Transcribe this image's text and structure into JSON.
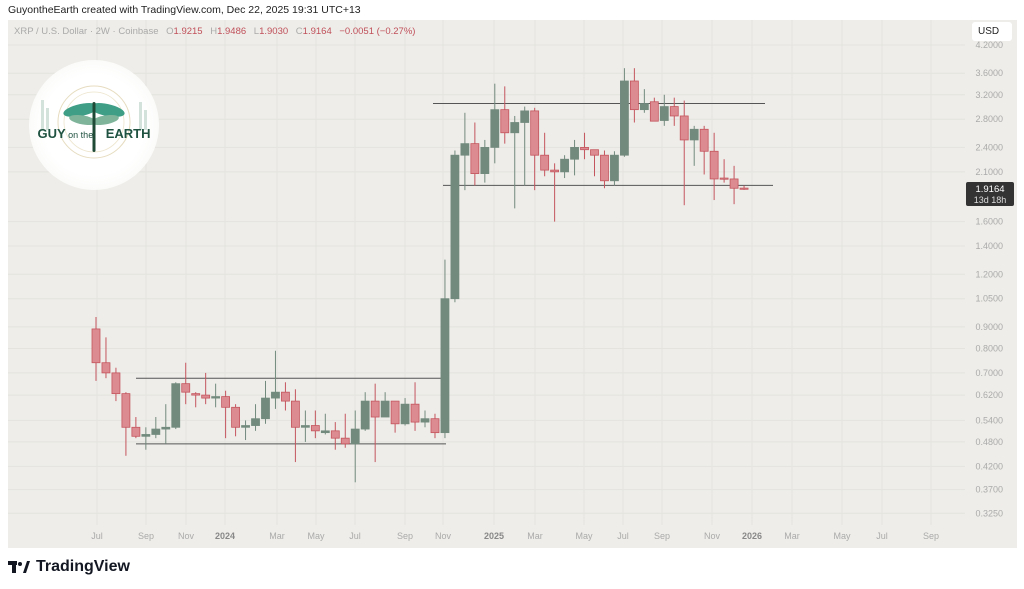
{
  "header": {
    "credit": "GuyontheEarth created with TradingView.com, Dec 22, 2025 19:31 UTC+13",
    "symbol": "XRP / U.S. Dollar · 2W · Coinbase",
    "o_label": "O",
    "o": "1.9215",
    "h_label": "H",
    "h": "1.9486",
    "l_label": "L",
    "l": "1.9030",
    "c_label": "C",
    "c": "1.9164",
    "change": "−0.0051 (−0.27%)"
  },
  "currency_button": "USD",
  "logo_text": "GUY on the EARTH",
  "footer_brand": "TradingView",
  "colors": {
    "up": "#728a7e",
    "down": "#dc8c91",
    "down_border": "#c4555e",
    "background": "#eeede9",
    "level_line": "#555555"
  },
  "chart_data": {
    "type": "candlestick",
    "interval": "2W",
    "y_scale": "log",
    "ylim": [
      0.31,
      4.3
    ],
    "grid": true,
    "y_ticks": [
      "4.2000",
      "3.6000",
      "3.2000",
      "2.8000",
      "2.4000",
      "2.1000",
      "1.6000",
      "1.4000",
      "1.2000",
      "1.0500",
      "0.9000",
      "0.8000",
      "0.7000",
      "0.6200",
      "0.5400",
      "0.4800",
      "0.4200",
      "0.3700",
      "0.3250"
    ],
    "x_ticks": [
      "Jul",
      "Sep",
      "Nov",
      "2024",
      "Mar",
      "May",
      "Jul",
      "Sep",
      "Nov",
      "2025",
      "Mar",
      "May",
      "Jul",
      "Sep",
      "Nov",
      "2026",
      "Mar",
      "May",
      "Jul",
      "Sep"
    ],
    "last_price": {
      "value": "1.9164",
      "countdown": "13d 18h"
    },
    "levels": [
      3.05,
      1.95,
      0.68,
      0.475
    ],
    "candles_ohlc": [
      [
        0.89,
        0.95,
        0.67,
        0.74
      ],
      [
        0.74,
        0.85,
        0.68,
        0.7
      ],
      [
        0.7,
        0.72,
        0.6,
        0.625
      ],
      [
        0.625,
        0.63,
        0.445,
        0.52
      ],
      [
        0.52,
        0.55,
        0.49,
        0.495
      ],
      [
        0.495,
        0.52,
        0.46,
        0.5
      ],
      [
        0.5,
        0.55,
        0.49,
        0.515
      ],
      [
        0.515,
        0.59,
        0.475,
        0.52
      ],
      [
        0.52,
        0.665,
        0.515,
        0.66
      ],
      [
        0.66,
        0.74,
        0.59,
        0.63
      ],
      [
        0.625,
        0.63,
        0.58,
        0.62
      ],
      [
        0.62,
        0.7,
        0.59,
        0.61
      ],
      [
        0.61,
        0.66,
        0.58,
        0.615
      ],
      [
        0.615,
        0.635,
        0.49,
        0.58
      ],
      [
        0.58,
        0.59,
        0.495,
        0.52
      ],
      [
        0.52,
        0.54,
        0.485,
        0.525
      ],
      [
        0.525,
        0.59,
        0.51,
        0.545
      ],
      [
        0.545,
        0.67,
        0.53,
        0.61
      ],
      [
        0.61,
        0.79,
        0.575,
        0.63
      ],
      [
        0.63,
        0.665,
        0.57,
        0.6
      ],
      [
        0.6,
        0.64,
        0.43,
        0.52
      ],
      [
        0.52,
        0.57,
        0.48,
        0.525
      ],
      [
        0.525,
        0.57,
        0.49,
        0.51
      ],
      [
        0.505,
        0.56,
        0.5,
        0.51
      ],
      [
        0.51,
        0.535,
        0.46,
        0.49
      ],
      [
        0.49,
        0.56,
        0.465,
        0.475
      ],
      [
        0.475,
        0.57,
        0.385,
        0.515
      ],
      [
        0.515,
        0.63,
        0.51,
        0.6
      ],
      [
        0.6,
        0.66,
        0.43,
        0.55
      ],
      [
        0.55,
        0.63,
        0.55,
        0.6
      ],
      [
        0.6,
        0.6,
        0.505,
        0.53
      ],
      [
        0.53,
        0.61,
        0.525,
        0.59
      ],
      [
        0.59,
        0.665,
        0.51,
        0.535
      ],
      [
        0.535,
        0.57,
        0.52,
        0.545
      ],
      [
        0.545,
        0.56,
        0.49,
        0.505
      ],
      [
        0.505,
        1.3,
        0.49,
        1.05
      ],
      [
        1.05,
        2.36,
        1.03,
        2.3
      ],
      [
        2.3,
        2.9,
        1.9,
        2.45
      ],
      [
        2.45,
        2.75,
        1.95,
        2.08
      ],
      [
        2.08,
        2.5,
        1.98,
        2.4
      ],
      [
        2.4,
        3.4,
        2.2,
        2.95
      ],
      [
        2.95,
        3.35,
        2.45,
        2.6
      ],
      [
        2.6,
        2.85,
        1.72,
        2.75
      ],
      [
        2.75,
        3.0,
        1.95,
        2.93
      ],
      [
        2.93,
        2.98,
        1.9,
        2.3
      ],
      [
        2.3,
        2.6,
        2.05,
        2.12
      ],
      [
        2.12,
        2.2,
        1.6,
        2.1
      ],
      [
        2.1,
        2.3,
        2.03,
        2.25
      ],
      [
        2.25,
        2.5,
        2.06,
        2.4
      ],
      [
        2.4,
        2.6,
        2.25,
        2.37
      ],
      [
        2.37,
        2.37,
        2.05,
        2.3
      ],
      [
        2.3,
        2.36,
        1.92,
        2.0
      ],
      [
        2.0,
        2.35,
        1.95,
        2.3
      ],
      [
        2.3,
        3.7,
        2.28,
        3.45
      ],
      [
        3.45,
        3.7,
        2.75,
        2.95
      ],
      [
        2.95,
        3.3,
        2.9,
        3.05
      ],
      [
        3.08,
        3.15,
        2.77,
        2.77
      ],
      [
        2.78,
        3.2,
        2.7,
        3.0
      ],
      [
        3.0,
        3.15,
        2.7,
        2.85
      ],
      [
        2.85,
        3.1,
        1.75,
        2.5
      ],
      [
        2.5,
        2.7,
        2.17,
        2.65
      ],
      [
        2.65,
        2.7,
        2.07,
        2.35
      ],
      [
        2.35,
        2.6,
        1.8,
        2.02
      ],
      [
        2.03,
        2.25,
        1.98,
        2.02
      ],
      [
        2.02,
        2.17,
        1.76,
        1.92
      ],
      [
        1.9215,
        1.9486,
        1.903,
        1.9164
      ]
    ]
  }
}
